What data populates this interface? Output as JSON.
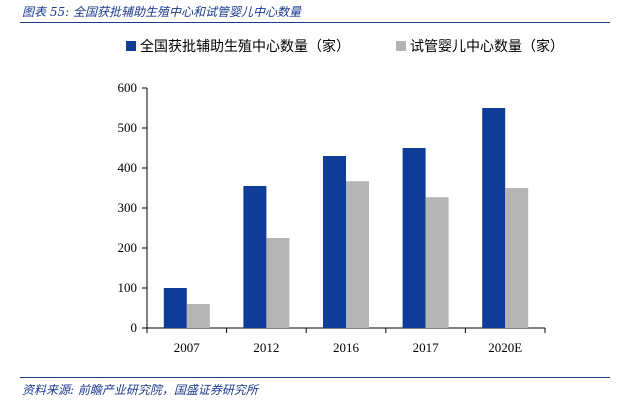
{
  "figure": {
    "title": "图表 55:  全国获批辅助生殖中心和试管婴儿中心数量",
    "source": "资料来源:  前瞻产业研究院，国盛证券研究所"
  },
  "chart_data": {
    "type": "bar",
    "categories": [
      "2007",
      "2012",
      "2016",
      "2017",
      "2020E"
    ],
    "series": [
      {
        "name": "全国获批辅助生殖中心数量（家）",
        "values": [
          100,
          355,
          430,
          450,
          550
        ],
        "color": "#0e3c96"
      },
      {
        "name": "试管婴儿中心数量（家）",
        "values": [
          60,
          225,
          367,
          327,
          350
        ],
        "color": "#b4b4b4"
      }
    ],
    "ylim": [
      0,
      600
    ],
    "yticks": [
      0,
      100,
      200,
      300,
      400,
      500,
      600
    ],
    "grid": false,
    "legend": "top"
  }
}
